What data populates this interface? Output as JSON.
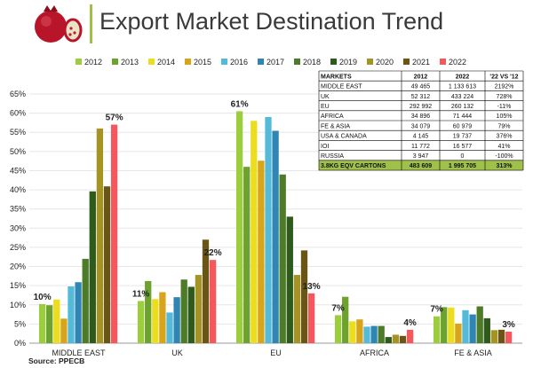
{
  "title": "Export Market Destination Trend",
  "source": "Source: PPECB",
  "colors": {
    "title_bar": "#9fc14a",
    "table_total_bg": "#9fc14a",
    "grid": "#e6e6e6",
    "axis": "#999999"
  },
  "icons": {
    "logo": "pomegranate-icon"
  },
  "chart_data": {
    "type": "bar",
    "categories": [
      "MIDDLE EAST",
      "UK",
      "EU",
      "AFRICA",
      "FE & ASIA"
    ],
    "ylim": [
      0,
      0.65
    ],
    "yticks": [
      "0%",
      "5%",
      "10%",
      "15%",
      "20%",
      "25%",
      "30%",
      "35%",
      "40%",
      "45%",
      "50%",
      "55%",
      "60%",
      "65%"
    ],
    "legend_position": "top",
    "grid": true,
    "series": [
      {
        "name": "2012",
        "color": "#9ccd3c",
        "values": [
          0.102,
          0.11,
          0.605,
          0.073,
          0.07
        ]
      },
      {
        "name": "2013",
        "color": "#6ea22e",
        "values": [
          0.099,
          0.162,
          0.46,
          0.121,
          0.094
        ]
      },
      {
        "name": "2014",
        "color": "#ecdd1e",
        "values": [
          0.114,
          0.115,
          0.58,
          0.057,
          0.093
        ]
      },
      {
        "name": "2015",
        "color": "#d8a41a",
        "values": [
          0.064,
          0.133,
          0.476,
          0.062,
          0.051
        ]
      },
      {
        "name": "2016",
        "color": "#55b9d8",
        "values": [
          0.148,
          0.08,
          0.59,
          0.043,
          0.086
        ]
      },
      {
        "name": "2017",
        "color": "#2f86b5",
        "values": [
          0.159,
          0.12,
          0.554,
          0.045,
          0.075
        ]
      },
      {
        "name": "2018",
        "color": "#4d7b28",
        "values": [
          0.22,
          0.166,
          0.44,
          0.045,
          0.096
        ]
      },
      {
        "name": "2019",
        "color": "#2e5a1c",
        "values": [
          0.396,
          0.147,
          0.33,
          0.016,
          0.065
        ]
      },
      {
        "name": "2020",
        "color": "#a59424",
        "values": [
          0.56,
          0.178,
          0.178,
          0.022,
          0.034
        ]
      },
      {
        "name": "2021",
        "color": "#6b5514",
        "values": [
          0.409,
          0.27,
          0.242,
          0.019,
          0.035
        ]
      },
      {
        "name": "2022",
        "color": "#f4575c",
        "values": [
          0.57,
          0.217,
          0.13,
          0.035,
          0.03
        ]
      }
    ],
    "annotations": [
      {
        "category": "MIDDLE EAST",
        "series": "2012",
        "text": "10%"
      },
      {
        "category": "MIDDLE EAST",
        "series": "2022",
        "text": "57%"
      },
      {
        "category": "UK",
        "series": "2012",
        "text": "11%"
      },
      {
        "category": "UK",
        "series": "2022",
        "text": "22%"
      },
      {
        "category": "EU",
        "series": "2012",
        "text": "61%"
      },
      {
        "category": "EU",
        "series": "2022",
        "text": "13%"
      },
      {
        "category": "AFRICA",
        "series": "2012",
        "text": "7%"
      },
      {
        "category": "AFRICA",
        "series": "2022",
        "text": "4%"
      },
      {
        "category": "FE & ASIA",
        "series": "2012",
        "text": "7%"
      },
      {
        "category": "FE & ASIA",
        "series": "2022",
        "text": "3%"
      }
    ]
  },
  "table": {
    "headers": [
      "MARKETS",
      "2012",
      "2022",
      "'22 VS '12"
    ],
    "rows": [
      [
        "MIDDLE EAST",
        "49 465",
        "1 133 613",
        "2192%"
      ],
      [
        "UK",
        "52 312",
        "433 224",
        "728%"
      ],
      [
        "EU",
        "292 992",
        "260 132",
        "-11%"
      ],
      [
        "AFRICA",
        "34 896",
        "71 444",
        "105%"
      ],
      [
        "FE & ASIA",
        "34 079",
        "60 979",
        "79%"
      ],
      [
        "USA & CANADA",
        "4 145",
        "19 737",
        "376%"
      ],
      [
        "IOI",
        "11 772",
        "16 577",
        "41%"
      ],
      [
        "RUSSIA",
        "3 947",
        "0",
        "-100%"
      ]
    ],
    "total": [
      "3.8KG EQV CARTONS",
      "483 609",
      "1 995 705",
      "313%"
    ]
  }
}
